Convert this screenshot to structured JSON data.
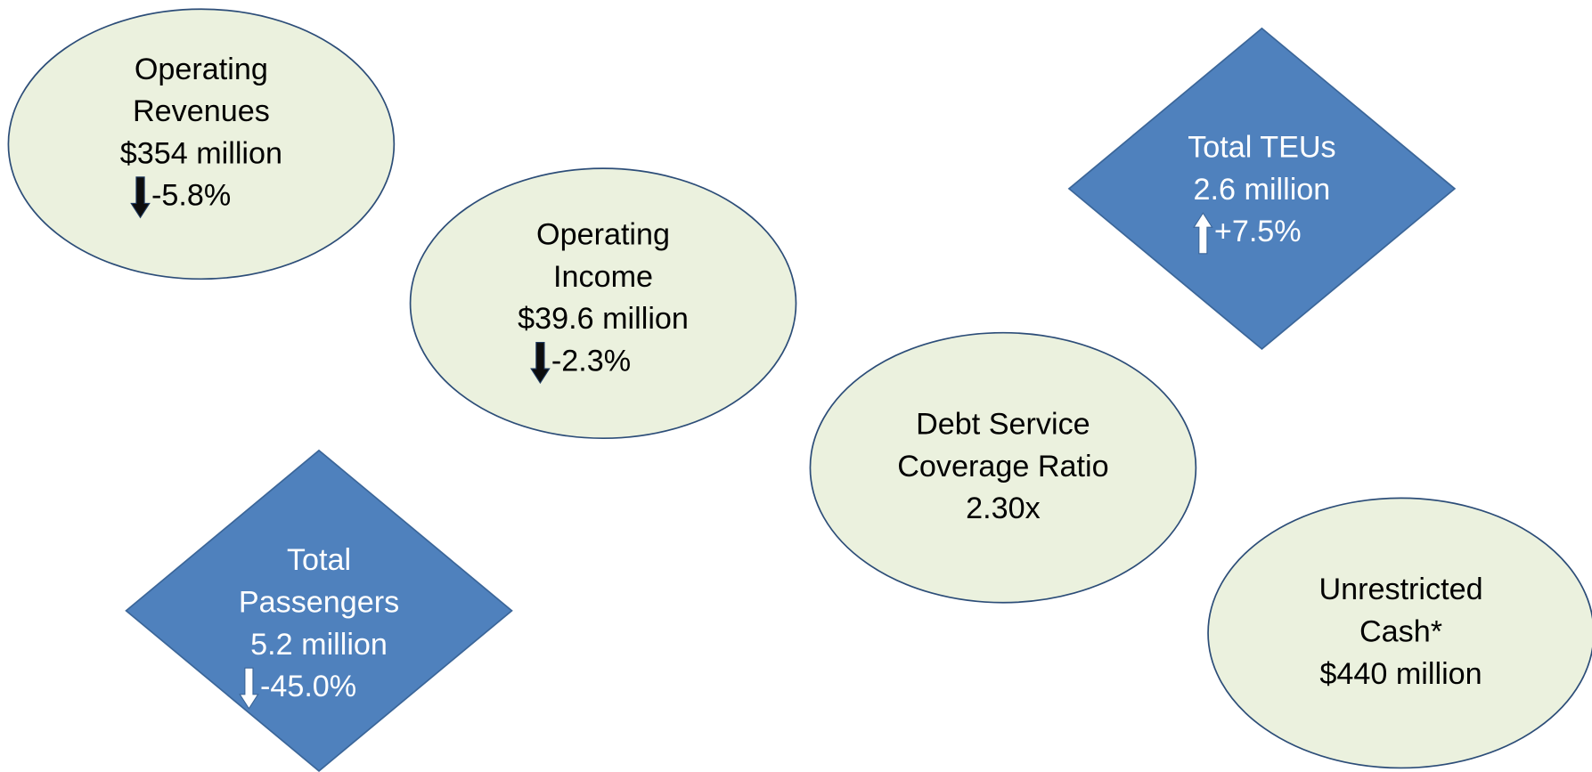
{
  "nodes": [
    {
      "lines": [
        "Operating",
        "Revenues",
        "$354 million"
      ],
      "change": "-5.8%"
    },
    {
      "lines": [
        "Operating",
        "Income",
        "$39.6 million"
      ],
      "change": "-2.3%"
    },
    {
      "lines": [
        "Total TEUs",
        "2.6 million"
      ],
      "change": "+7.5%"
    },
    {
      "lines": [
        "Debt Service",
        "Coverage Ratio",
        "2.30x"
      ]
    },
    {
      "lines": [
        "Unrestricted",
        "Cash*",
        "$440 million"
      ]
    },
    {
      "lines": [
        "Total",
        "Passengers",
        "5.2 million"
      ],
      "change": "-45.0%"
    }
  ]
}
